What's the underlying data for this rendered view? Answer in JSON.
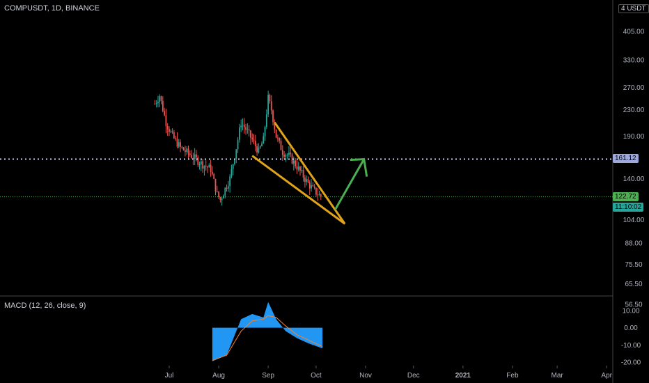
{
  "header": {
    "symbol": "COMPUSDT, 1D, BINANCE",
    "unit": "4 USDT"
  },
  "macd": {
    "label": "MACD (12, 26, close, 9)"
  },
  "chart_data": [
    {
      "type": "candlestick",
      "title": "COMPUSDT, 1D, BINANCE",
      "y_scale": "log",
      "y_ticks": [
        "405.00",
        "330.00",
        "270.00",
        "230.00",
        "190.00",
        "140.00",
        "104.00",
        "88.00",
        "75.50",
        "65.50",
        "56.50"
      ],
      "x_ticks": [
        "Jul",
        "Aug",
        "Sep",
        "Oct",
        "Nov",
        "Dec",
        "2021",
        "Feb",
        "Mar",
        "Apr"
      ],
      "current_price": "122.72",
      "countdown": "11:10:02",
      "target_line": "161.12",
      "price_path": [
        [
          "2020-06-22",
          240
        ],
        [
          "2020-06-25",
          255
        ],
        [
          "2020-06-29",
          210
        ],
        [
          "2020-07-03",
          190
        ],
        [
          "2020-07-08",
          175
        ],
        [
          "2020-07-15",
          165
        ],
        [
          "2020-07-22",
          155
        ],
        [
          "2020-07-27",
          150
        ],
        [
          "2020-07-31",
          125
        ],
        [
          "2020-08-02",
          120
        ],
        [
          "2020-08-05",
          130
        ],
        [
          "2020-08-08",
          140
        ],
        [
          "2020-08-12",
          175
        ],
        [
          "2020-08-15",
          210
        ],
        [
          "2020-08-18",
          200
        ],
        [
          "2020-08-22",
          185
        ],
        [
          "2020-08-26",
          170
        ],
        [
          "2020-08-29",
          185
        ],
        [
          "2020-09-01",
          250
        ],
        [
          "2020-09-03",
          230
        ],
        [
          "2020-09-06",
          190
        ],
        [
          "2020-09-10",
          170
        ],
        [
          "2020-09-14",
          165
        ],
        [
          "2020-09-18",
          155
        ],
        [
          "2020-09-22",
          145
        ],
        [
          "2020-09-26",
          135
        ],
        [
          "2020-09-30",
          128
        ],
        [
          "2020-10-03",
          124
        ],
        [
          "2020-10-05",
          122.72
        ]
      ],
      "annotations": {
        "wedge": "falling wedge",
        "wedge_color": "#e0a31a",
        "arrow_color": "#4caf50"
      }
    },
    {
      "type": "area",
      "title": "MACD (12, 26, close, 9)",
      "y_ticks": [
        "10.00",
        "0.00",
        "-10.00",
        "-20.00"
      ],
      "histogram_color": "#2196f3",
      "signal_color": "#ff7f27",
      "x": [
        "2020-07-28",
        "2020-08-06",
        "2020-08-15",
        "2020-08-22",
        "2020-08-29",
        "2020-09-01",
        "2020-09-06",
        "2020-09-12",
        "2020-09-19",
        "2020-09-26",
        "2020-10-05"
      ],
      "macd": [
        -19.5,
        -16,
        5,
        8,
        6,
        15,
        5,
        -2,
        -6,
        -9,
        -12
      ],
      "signal": [
        -19,
        -16,
        -2,
        4,
        5,
        7,
        6,
        1,
        -4,
        -7,
        -11
      ]
    }
  ]
}
